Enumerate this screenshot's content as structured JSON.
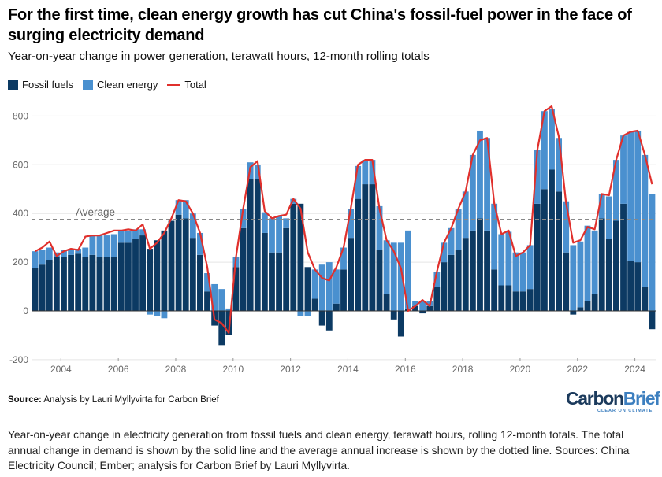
{
  "title": "For the first time, clean energy growth has cut China's fossil-fuel power in the face of surging electricity demand",
  "subtitle": "Year-on-year change in power generation, terawatt hours, 12-month rolling totals",
  "legend": {
    "fossil": "Fossil fuels",
    "clean": "Clean energy",
    "total": "Total"
  },
  "source": {
    "label": "Source:",
    "text": "Analysis by Lauri Myllyvirta for Carbon Brief"
  },
  "logo": {
    "word1": "Carbon",
    "word2": "Brief",
    "tagline": "CLEAR ON CLIMATE"
  },
  "caption": "Year-on-year change in electricity generation from fossil fuels and clean energy, terawatt hours, rolling 12-month totals. The total annual change in demand is shown by the solid line and the average annual increase is shown by the dotted line. Sources: China Electricity Council; Ember; analysis for Carbon Brief by Lauri Myllyvirta.",
  "colors": {
    "fossil": "#0c3a63",
    "clean": "#4a90cf",
    "total": "#e0302c",
    "average": "#888888",
    "grid": "#e5e5e5"
  },
  "chart_data": {
    "type": "bar",
    "stacked": true,
    "ylim": [
      -200,
      850
    ],
    "yticks": [
      -200,
      0,
      200,
      400,
      600,
      800
    ],
    "xticks": [
      "2004",
      "2006",
      "2008",
      "2010",
      "2012",
      "2014",
      "2016",
      "2018",
      "2020",
      "2022",
      "2024"
    ],
    "x_start": 2003.1,
    "x_step": 0.25,
    "average": {
      "label": "Average",
      "value": 375
    },
    "series": [
      {
        "name": "Fossil fuels",
        "values": [
          175,
          190,
          210,
          220,
          220,
          230,
          235,
          220,
          230,
          220,
          220,
          220,
          280,
          280,
          295,
          310,
          255,
          290,
          330,
          370,
          395,
          380,
          300,
          230,
          80,
          -60,
          -140,
          -100,
          180,
          340,
          540,
          540,
          320,
          240,
          240,
          340,
          440,
          440,
          180,
          50,
          -60,
          -80,
          30,
          170,
          300,
          460,
          520,
          520,
          250,
          70,
          -35,
          -105,
          10,
          20,
          -10,
          20,
          100,
          200,
          230,
          250,
          300,
          330,
          380,
          330,
          170,
          105,
          105,
          80,
          80,
          90,
          440,
          500,
          580,
          490,
          240,
          -15,
          15,
          40,
          70,
          380,
          295,
          370,
          440,
          205,
          200,
          100,
          -75
        ]
      },
      {
        "name": "Clean energy",
        "values": [
          70,
          60,
          50,
          20,
          30,
          25,
          20,
          40,
          80,
          90,
          90,
          95,
          50,
          50,
          40,
          25,
          -15,
          -20,
          -30,
          0,
          60,
          75,
          100,
          90,
          75,
          110,
          90,
          10,
          40,
          80,
          70,
          60,
          85,
          140,
          150,
          40,
          20,
          -20,
          -20,
          120,
          190,
          200,
          140,
          90,
          120,
          135,
          100,
          100,
          180,
          220,
          280,
          280,
          320,
          20,
          40,
          20,
          60,
          80,
          110,
          170,
          190,
          310,
          360,
          380,
          270,
          210,
          220,
          160,
          160,
          180,
          220,
          320,
          250,
          220,
          210,
          270,
          270,
          310,
          260,
          100,
          175,
          250,
          280,
          530,
          540,
          540,
          480
        ]
      },
      {
        "name": "Total",
        "values": [
          245,
          260,
          285,
          225,
          245,
          255,
          250,
          305,
          310,
          310,
          320,
          330,
          330,
          335,
          330,
          355,
          255,
          280,
          320,
          380,
          455,
          450,
          400,
          320,
          180,
          -35,
          -50,
          -90,
          220,
          420,
          590,
          615,
          410,
          380,
          390,
          395,
          460,
          420,
          240,
          170,
          135,
          125,
          180,
          260,
          420,
          600,
          620,
          620,
          420,
          290,
          245,
          175,
          0,
          20,
          45,
          20,
          160,
          280,
          340,
          420,
          490,
          640,
          700,
          710,
          440,
          315,
          330,
          225,
          240,
          270,
          660,
          820,
          840,
          715,
          445,
          280,
          290,
          345,
          335,
          480,
          475,
          620,
          720,
          735,
          740,
          640,
          520
        ]
      }
    ]
  }
}
